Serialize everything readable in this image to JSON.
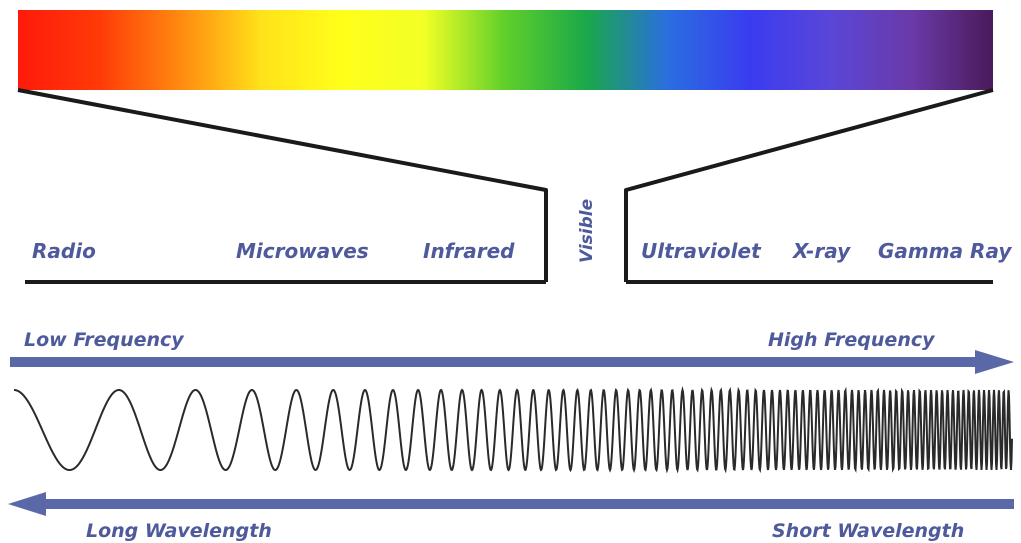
{
  "spectrum_colors": [
    "#ff1a0a",
    "#ff3a08",
    "#ff8a10",
    "#ffe21a",
    "#ffff1a",
    "#f2ff26",
    "#5fcf2a",
    "#1aa84a",
    "#2a6ee0",
    "#3a3cf0",
    "#5a46d8",
    "#6a3aa8",
    "#4a1a5a"
  ],
  "bands": [
    {
      "id": "radio",
      "label": "Radio"
    },
    {
      "id": "microwaves",
      "label": "Microwaves"
    },
    {
      "id": "infrared",
      "label": "Infrared"
    },
    {
      "id": "visible",
      "label": "Visible"
    },
    {
      "id": "ultraviolet",
      "label": "Ultraviolet"
    },
    {
      "id": "xray",
      "label": "X-ray"
    },
    {
      "id": "gamma",
      "label": "Gamma Ray"
    }
  ],
  "frequency": {
    "low_label": "Low Frequency",
    "high_label": "High Frequency"
  },
  "wavelength": {
    "long_label": "Long Wavelength",
    "short_label": "Short Wavelength"
  },
  "colors": {
    "label": "#4e5a9c",
    "arrow": "#5b68a8",
    "line": "#1a1a1a",
    "wave": "#2a2a2a"
  }
}
